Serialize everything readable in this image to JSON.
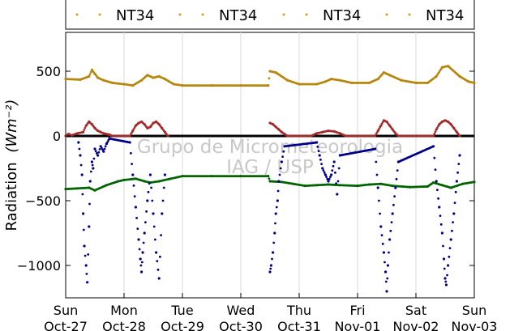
{
  "chart_data": {
    "type": "scatter",
    "title": "",
    "ylabel": "Radiation",
    "ylabel_unit": "(Wm⁻²)",
    "ylim": [
      -1250,
      800
    ],
    "xlim": [
      0,
      7
    ],
    "yticks": [
      500,
      0,
      -500,
      -1000
    ],
    "ytick_labels": [
      "500",
      "0",
      "−500",
      "−1000"
    ],
    "xticks": [
      0,
      1,
      2,
      3,
      4,
      5,
      6,
      7
    ],
    "xtick_labels": [
      [
        "Sun",
        "Oct-27"
      ],
      [
        "Mon",
        "Oct-28"
      ],
      [
        "Tue",
        "Oct-29"
      ],
      [
        "Wed",
        "Oct-30"
      ],
      [
        "Thu",
        "Oct-31"
      ],
      [
        "Fri",
        "Nov-01"
      ],
      [
        "Sat",
        "Nov-02"
      ],
      [
        "Sun",
        "Nov-03"
      ]
    ],
    "grid": "vertical",
    "legend": {
      "placement": "top",
      "entries": [
        "NT34",
        "NT34",
        "NT34",
        "NT34"
      ],
      "marker_color": "#d4a017"
    },
    "watermark": [
      "Grupo de Micrometeorologia",
      "IAG / USP"
    ],
    "series": [
      {
        "color": "#b8860b",
        "x": [
          0.0,
          0.25,
          0.4,
          0.45,
          0.5,
          0.55,
          0.65,
          0.8,
          1.0,
          1.15,
          1.3,
          1.4,
          1.5,
          1.6,
          1.7,
          1.85,
          2.0,
          2.5,
          3.0,
          3.47,
          3.5,
          3.6,
          3.8,
          4.0,
          4.3,
          4.45,
          4.55,
          4.7,
          4.9,
          5.2,
          5.35,
          5.45,
          5.55,
          5.75,
          6.0,
          6.2,
          6.35,
          6.45,
          6.55,
          6.75,
          6.9,
          7.0
        ],
        "y": [
          440,
          435,
          460,
          510,
          480,
          450,
          430,
          410,
          400,
          390,
          430,
          470,
          450,
          460,
          440,
          400,
          390,
          390,
          390,
          390,
          500,
          490,
          430,
          400,
          400,
          420,
          440,
          430,
          410,
          410,
          440,
          490,
          470,
          430,
          410,
          410,
          460,
          530,
          540,
          460,
          420,
          410
        ]
      },
      {
        "color": "#006400",
        "x": [
          0.0,
          0.2,
          0.4,
          0.5,
          0.7,
          0.9,
          1.0,
          1.2,
          1.35,
          1.45,
          1.6,
          1.8,
          2.0,
          2.5,
          3.0,
          3.47,
          3.5,
          3.7,
          3.9,
          4.1,
          4.3,
          4.5,
          4.7,
          5.0,
          5.2,
          5.4,
          5.6,
          5.9,
          6.2,
          6.3,
          6.45,
          6.6,
          6.8,
          7.0
        ],
        "y": [
          -410,
          -405,
          -400,
          -420,
          -380,
          -350,
          -340,
          -330,
          -350,
          -360,
          -350,
          -330,
          -310,
          -310,
          -310,
          -310,
          -350,
          -355,
          -370,
          -385,
          -380,
          -375,
          -380,
          -385,
          -375,
          -370,
          -385,
          -395,
          -390,
          -360,
          -380,
          -400,
          -370,
          -355
        ]
      },
      {
        "color": "#000000",
        "x": [
          0.0,
          7.0
        ],
        "y": [
          0,
          0
        ]
      },
      {
        "color": "#a52a2a",
        "x": [
          0.0,
          0.05,
          0.1,
          0.2,
          0.3,
          0.35,
          0.4,
          0.45,
          0.5,
          0.55,
          0.6,
          0.65,
          0.7,
          0.75,
          0.8,
          1.1,
          1.15,
          1.2,
          1.25,
          1.3,
          1.35,
          1.4,
          1.45,
          1.5,
          1.55,
          1.6,
          1.65,
          1.7,
          1.75,
          3.5,
          3.55,
          3.6,
          3.65,
          3.7,
          3.75,
          3.8,
          4.2,
          4.3,
          4.4,
          4.5,
          4.6,
          4.7,
          4.8,
          5.3,
          5.35,
          5.4,
          5.45,
          5.5,
          5.55,
          5.6,
          5.65,
          5.7,
          6.3,
          6.35,
          6.4,
          6.45,
          6.5,
          6.55,
          6.6,
          6.65,
          6.7,
          6.75
        ],
        "y": [
          0,
          15,
          5,
          20,
          30,
          80,
          110,
          90,
          60,
          40,
          30,
          20,
          15,
          10,
          0,
          0,
          40,
          80,
          100,
          110,
          90,
          60,
          70,
          100,
          110,
          90,
          60,
          30,
          0,
          100,
          90,
          70,
          50,
          30,
          15,
          0,
          0,
          20,
          30,
          40,
          35,
          20,
          0,
          0,
          40,
          80,
          120,
          110,
          80,
          50,
          20,
          0,
          0,
          50,
          90,
          110,
          120,
          110,
          90,
          60,
          30,
          0
        ]
      },
      {
        "color": "#00008b",
        "x": [
          0.22,
          0.25,
          0.28,
          0.3,
          0.32,
          0.35,
          0.37,
          0.4,
          0.42,
          0.45,
          0.47,
          0.5,
          0.55,
          0.6,
          0.65,
          0.7,
          0.75,
          1.1,
          1.15,
          1.2,
          1.25,
          1.28,
          1.3,
          1.32,
          1.35,
          1.4,
          1.45,
          1.5,
          1.55,
          1.6,
          1.65,
          1.7,
          3.5,
          3.52,
          3.55,
          3.58,
          3.6,
          3.63,
          3.65,
          3.7,
          3.75,
          4.3,
          4.35,
          4.4,
          4.45,
          4.5,
          4.55,
          4.6,
          4.65,
          4.7,
          5.3,
          5.35,
          5.4,
          5.45,
          5.48,
          5.5,
          5.52,
          5.55,
          5.6,
          5.65,
          5.7,
          6.3,
          6.35,
          6.4,
          6.45,
          6.48,
          6.5,
          6.52,
          6.55,
          6.6,
          6.65,
          6.7,
          6.75
        ],
        "y": [
          -50,
          -150,
          -300,
          -600,
          -850,
          -1000,
          -1130,
          -700,
          -350,
          -200,
          -250,
          -100,
          -150,
          -80,
          -120,
          -60,
          -20,
          -50,
          -300,
          -550,
          -800,
          -950,
          -1050,
          -900,
          -750,
          -500,
          -300,
          -600,
          -900,
          -1100,
          -600,
          -300,
          -1050,
          -1000,
          -900,
          -750,
          -600,
          -500,
          -350,
          -200,
          -80,
          -50,
          -150,
          -250,
          -300,
          -350,
          -300,
          -200,
          -450,
          -150,
          -100,
          -400,
          -700,
          -900,
          -1050,
          -1200,
          -1000,
          -800,
          -600,
          -400,
          -200,
          -80,
          -350,
          -550,
          -750,
          -950,
          -1100,
          -1150,
          -1000,
          -800,
          -600,
          -350,
          -150
        ]
      }
    ]
  }
}
